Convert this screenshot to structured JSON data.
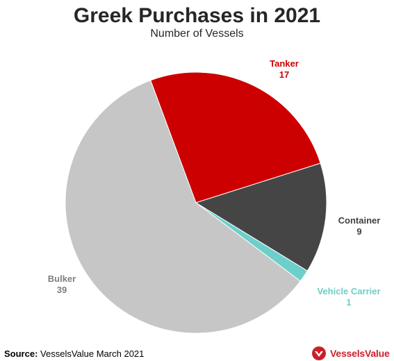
{
  "colors": {
    "Tanker": "#cc0000",
    "Container": "#454545",
    "Vehicle Carrier": "#6dcfca",
    "Bulker": "#c6c6c6",
    "text_dark": "#262626",
    "brand_red": "#cc1f2a"
  },
  "chart_data": {
    "type": "pie",
    "title": "Greek Purchases in 2021",
    "subtitle": "Number of Vessels",
    "slices": [
      {
        "label": "Tanker",
        "value": 17
      },
      {
        "label": "Container",
        "value": 9
      },
      {
        "label": "Vehicle Carrier",
        "value": 1
      },
      {
        "label": "Bulker",
        "value": 39
      }
    ]
  },
  "footer": {
    "source_label": "Source:",
    "source_text": "VesselsValue March 2021",
    "brand": "VesselsValue",
    "brand_icon": "vesselsvalue-logo-icon"
  }
}
